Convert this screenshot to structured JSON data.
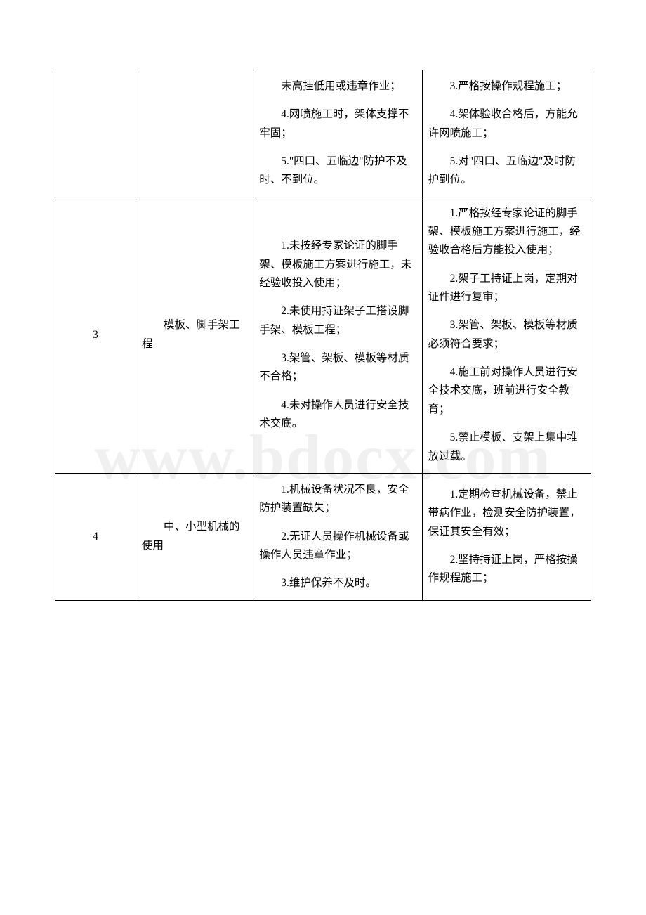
{
  "watermark": "www.bdocx.com",
  "table": {
    "rows": [
      {
        "num": "",
        "category": "",
        "col3": [
          "未高挂低用或违章作业；",
          "4.网喷施工时，架体支撑不牢固；",
          "5.\"四口、五临边\"防护不及时、不到位。"
        ],
        "col4": [
          "3.严格按操作规程施工；",
          "4.架体验收合格后，方能允许网喷施工；",
          "5.对\"四口、五临边\"及时防护到位。"
        ],
        "continuation": true
      },
      {
        "num": "3",
        "category": "模板、脚手架工程",
        "col3": [
          "1.未按经专家论证的脚手架、模板施工方案进行施工，未经验收投入使用；",
          "2.未使用持证架子工搭设脚手架、模板工程；",
          "3.架管、架板、模板等材质不合格；",
          "4.未对操作人员进行安全技术交底。"
        ],
        "col4": [
          "1.严格按经专家论证的脚手架、模板施工方案进行施工，经验收合格后方能投入使用；",
          "2.架子工持证上岗，定期对证件进行复审；",
          "3.架管、架板、模板等材质必须符合要求；",
          "4.施工前对操作人员进行安全技术交底，班前进行安全教育；",
          "5.禁止模板、支架上集中堆放过载。"
        ],
        "continuation": false
      },
      {
        "num": "4",
        "category": "中、小型机械的使用",
        "col3": [
          "1.机械设备状况不良，安全防护装置缺失；",
          "2.无证人员操作机械设备或操作人员违章作业；",
          "3.维护保养不及时。"
        ],
        "col4": [
          "1.定期检查机械设备，禁止带病作业，检测安全防护装置，保证其安全有效；",
          "2.坚持持证上岗，严格按操作规程施工；"
        ],
        "continuation": false
      }
    ]
  }
}
